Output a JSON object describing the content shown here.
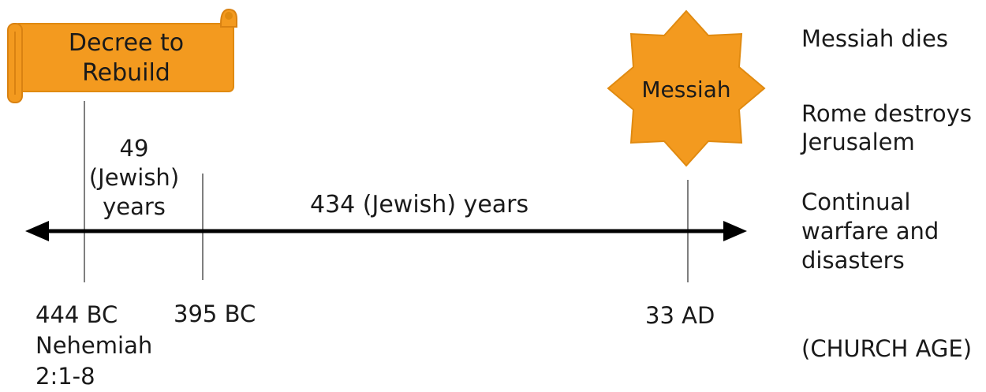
{
  "banner": {
    "text": "Decree to\nRebuild",
    "fill": "#f39a1f",
    "stroke": "#e08a10"
  },
  "star": {
    "text": "Messiah",
    "fill": "#f39a1f"
  },
  "timeline": {
    "span1_label": "49\n(Jewish)\nyears",
    "span2_label": "434 (Jewish) years",
    "markers": [
      {
        "label": "444 BC\nNehemiah\n2:1-8"
      },
      {
        "label": "395 BC"
      },
      {
        "label": "33 AD"
      }
    ]
  },
  "right_notes": {
    "messiah_dies": "Messiah dies",
    "rome": "Rome destroys\nJerusalem",
    "warfare": "Continual\nwarfare and\ndisasters",
    "church_age": "(CHURCH AGE)"
  }
}
